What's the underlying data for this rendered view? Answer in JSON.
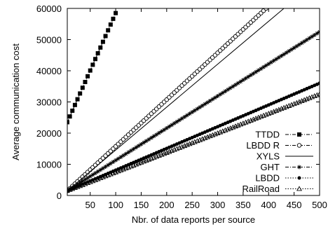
{
  "chart_data": {
    "type": "line",
    "xlabel": "Nbr. of data reports per source",
    "ylabel": "Average communication cost",
    "xlim": [
      5,
      500
    ],
    "ylim": [
      0,
      60000
    ],
    "xticks": [
      50,
      100,
      150,
      200,
      250,
      300,
      350,
      400,
      450,
      500
    ],
    "yticks": [
      0,
      10000,
      20000,
      30000,
      40000,
      50000,
      60000
    ],
    "grid": false,
    "legend_position": "bottom-right",
    "series": [
      {
        "name": "TTDD",
        "marker": "square-filled",
        "line": "dash-dot",
        "x": [
          5,
          100
        ],
        "y": [
          23500,
          58500
        ]
      },
      {
        "name": "LBDD R",
        "marker": "circle-open",
        "line": "dash-dot",
        "x": [
          5,
          395
        ],
        "y": [
          1500,
          60000
        ]
      },
      {
        "name": "XYLS",
        "marker": "none",
        "line": "solid",
        "x": [
          5,
          430
        ],
        "y": [
          1500,
          60000
        ]
      },
      {
        "name": "GHT",
        "marker": "star",
        "line": "dash-dot",
        "x": [
          5,
          500
        ],
        "y": [
          1500,
          52500
        ]
      },
      {
        "name": "LBDD",
        "marker": "circle-filled",
        "line": "dotted",
        "x": [
          5,
          500
        ],
        "y": [
          1500,
          36000
        ]
      },
      {
        "name": "RailRoad",
        "marker": "triangle-open",
        "line": "dotted",
        "x": [
          5,
          500
        ],
        "y": [
          1500,
          32500
        ]
      }
    ]
  }
}
